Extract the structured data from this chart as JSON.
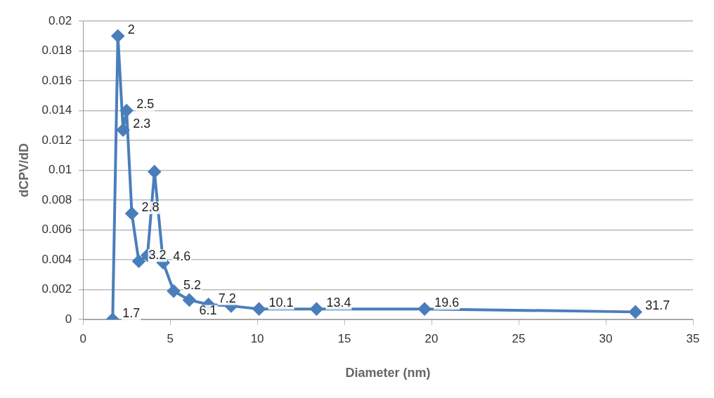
{
  "chart_data": {
    "type": "line",
    "xlabel": "Diameter (nm)",
    "ylabel": "dCPV/dD",
    "series": [
      {
        "color": "#4a7ebb",
        "x": [
          1.7,
          2,
          2.3,
          2.5,
          2.8,
          3.2,
          3.7,
          4.1,
          4.6,
          5.2,
          6.1,
          7.2,
          8.5,
          10.1,
          13.4,
          19.6,
          31.7
        ],
        "values": [
          0,
          0.019,
          0.0127,
          0.014,
          0.0071,
          0.0039,
          0.0043,
          0.0099,
          0.0038,
          0.0019,
          0.0013,
          0.001,
          0.0009,
          0.0007,
          0.0007,
          0.0007,
          0.0005
        ]
      }
    ],
    "annotations": [
      {
        "text": "1.7",
        "x": 1.7,
        "y": 0
      },
      {
        "text": "2",
        "x": 2,
        "y": 0.019
      },
      {
        "text": "2.5",
        "x": 2.5,
        "y": 0.014
      },
      {
        "text": "2.3",
        "x": 2.3,
        "y": 0.0127
      },
      {
        "text": "2.8",
        "x": 2.8,
        "y": 0.0071
      },
      {
        "text": "3.2",
        "x": 3.2,
        "y": 0.0039
      },
      {
        "text": "4.6",
        "x": 4.6,
        "y": 0.0038
      },
      {
        "text": "5.2",
        "x": 5.2,
        "y": 0.0019
      },
      {
        "text": "6.1",
        "x": 6.1,
        "y": 0.0013
      },
      {
        "text": "7.2",
        "x": 7.2,
        "y": 0.001
      },
      {
        "text": "10.1",
        "x": 10.1,
        "y": 0.0007
      },
      {
        "text": "13.4",
        "x": 13.4,
        "y": 0.0007
      },
      {
        "text": "19.6",
        "x": 19.6,
        "y": 0.0007
      },
      {
        "text": "31.7",
        "x": 31.7,
        "y": 0.0005
      }
    ],
    "xlim": [
      0,
      35
    ],
    "xticks": [
      0,
      5,
      10,
      15,
      20,
      25,
      30,
      35
    ],
    "ylim": [
      0,
      0.02
    ],
    "yticks": [
      0,
      0.002,
      0.004,
      0.006,
      0.008,
      0.01,
      0.012,
      0.014,
      0.016,
      0.018,
      0.02
    ],
    "grid": "y",
    "marker": "diamond",
    "line_style": "solid",
    "legend": false
  }
}
